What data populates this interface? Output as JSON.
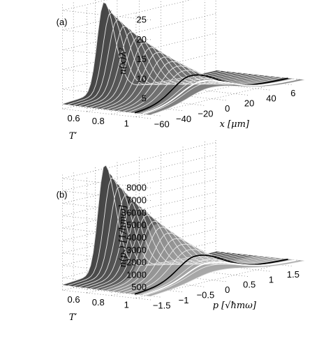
{
  "chart_data": [
    {
      "type": "surface",
      "panel_label": "(a)",
      "zlabel": "n(x)λ²",
      "xlabel": "x  [μm]",
      "ylabel": "T′",
      "z_ticks": [
        "5",
        "10",
        "15",
        "20",
        "25"
      ],
      "x_ticks": [
        "−60",
        "−40",
        "−20",
        "0",
        "20",
        "40",
        "6"
      ],
      "t_ticks": [
        "0.6",
        "0.8",
        "1"
      ],
      "zlim": [
        0,
        28
      ],
      "xlim": [
        -70,
        60
      ],
      "tlim": [
        0.5,
        1.05
      ],
      "peak_z_at_min_T": 26,
      "peak_x_at_min_T": -35,
      "peak_z_at_T1": 4.5,
      "peak_x_at_T1": -20,
      "highlight_T": [
        0.95,
        1.0
      ],
      "grid": true
    },
    {
      "type": "surface",
      "panel_label": "(b)",
      "zlabel": "n(pₓ)  [1/ħmω]",
      "xlabel": "p  [√ħmω]",
      "ylabel": "T′",
      "z_ticks": [
        "500",
        "1000",
        "2000",
        "3000",
        "4000",
        "5000",
        "6000",
        "7000",
        "8000"
      ],
      "x_ticks": [
        "−1.5",
        "−1",
        "−0.5",
        "0",
        "0.5",
        "1",
        "1.5"
      ],
      "t_ticks": [
        "0.6",
        "0.8",
        "1"
      ],
      "zlim": [
        0,
        8500
      ],
      "xlim": [
        -2,
        2
      ],
      "tlim": [
        0.5,
        1.05
      ],
      "peak_z_at_min_T": 8500,
      "peak_x_at_min_T": -0.9,
      "peak_z_at_T1": 1000,
      "peak_x_at_T1": -0.3,
      "highlight_T": [
        0.95,
        1.0
      ],
      "grid": true
    }
  ]
}
